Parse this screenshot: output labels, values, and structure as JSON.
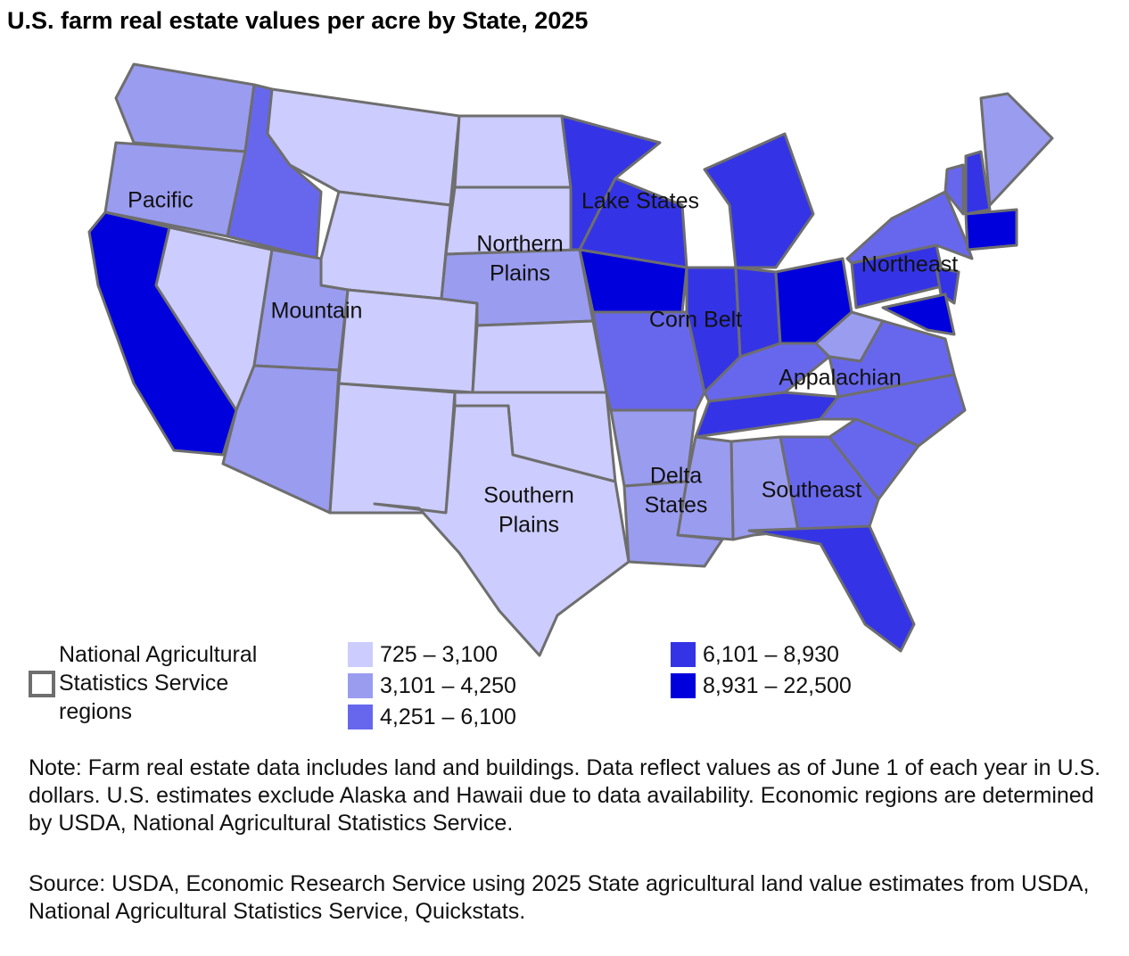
{
  "title": "U.S. farm real estate values per acre by State, 2025",
  "regions": [
    {
      "label": [
        "Pacific"
      ]
    },
    {
      "label": [
        "Mountain"
      ]
    },
    {
      "label": [
        "Northern",
        "Plains"
      ]
    },
    {
      "label": [
        "Southern",
        "Plains"
      ]
    },
    {
      "label": [
        "Lake States"
      ]
    },
    {
      "label": [
        "Corn Belt"
      ]
    },
    {
      "label": [
        "Delta",
        "States"
      ]
    },
    {
      "label": [
        "Appalachian"
      ]
    },
    {
      "label": [
        "Southeast"
      ]
    },
    {
      "label": [
        "Northeast"
      ]
    }
  ],
  "legend": {
    "region_label": "National Agricultural Statistics Service regions",
    "items": [
      {
        "label": "725 – 3,100",
        "color": "#ccccff"
      },
      {
        "label": "3,101 – 4,250",
        "color": "#9a9cf0"
      },
      {
        "label": "4,251 – 6,100",
        "color": "#6767ee"
      },
      {
        "label": "6,101 – 8,930",
        "color": "#3434e6"
      },
      {
        "label": "8,931 – 22,500",
        "color": "#0000dd"
      }
    ]
  },
  "note": "Note: Farm real estate data includes land and buildings. Data reflect values as of June 1 of each year in U.S. dollars. U.S. estimates exclude Alaska and Hawaii due to data availability. Economic regions are determined by USDA, National Agricultural Statistics Service.",
  "source": "Source: USDA, Economic Research Service using 2025 State agricultural land value estimates from USDA, National Agricultural Statistics Service, Quickstats."
}
